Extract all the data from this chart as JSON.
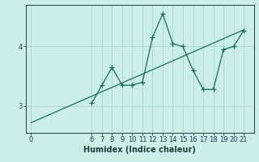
{
  "xlabel": "Humidex (Indice chaleur)",
  "bg_color": "#cceee8",
  "grid_color": "#aad4ce",
  "line_color": "#1a6b5a",
  "x_data": [
    6,
    7,
    8,
    9,
    10,
    11,
    12,
    13,
    14,
    15,
    16,
    17,
    18,
    19,
    20,
    21
  ],
  "y_data": [
    3.05,
    3.35,
    3.65,
    3.35,
    3.35,
    3.4,
    4.15,
    4.55,
    4.05,
    4.0,
    3.6,
    3.28,
    3.28,
    3.95,
    4.0,
    4.27
  ],
  "trend_x": [
    0,
    21
  ],
  "trend_y": [
    2.72,
    4.28
  ],
  "yticks": [
    3,
    4
  ],
  "xticks": [
    0,
    6,
    7,
    8,
    9,
    10,
    11,
    12,
    13,
    14,
    15,
    16,
    17,
    18,
    19,
    20,
    21
  ],
  "xlim": [
    -0.5,
    22
  ],
  "ylim": [
    2.55,
    4.7
  ],
  "marker": "+",
  "markersize": 4,
  "linewidth": 0.9,
  "font_color": "#1a4040",
  "tick_fontsize": 6,
  "xlabel_fontsize": 7
}
